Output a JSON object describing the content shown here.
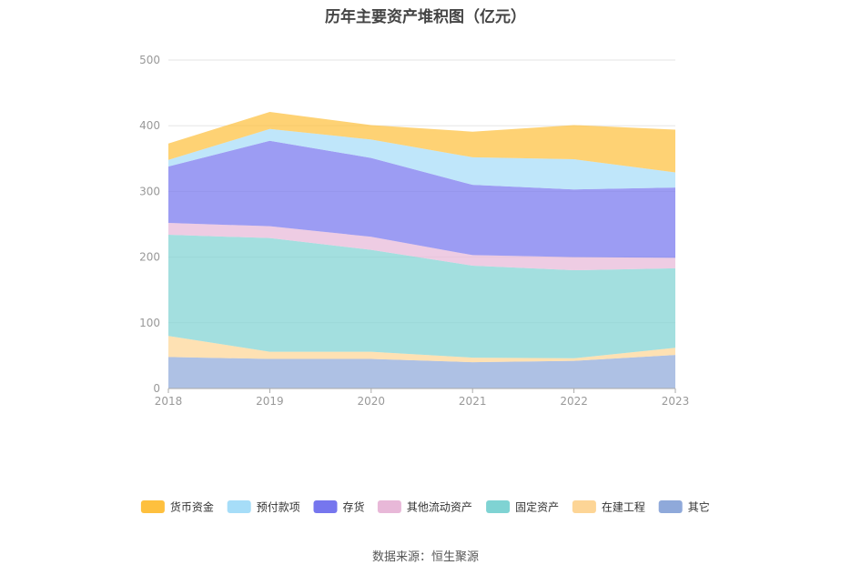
{
  "chart_data": {
    "type": "area",
    "stacked": true,
    "title": "历年主要资产堆积图（亿元）",
    "x": [
      "2018",
      "2019",
      "2020",
      "2021",
      "2022",
      "2023"
    ],
    "ylim": [
      0,
      500
    ],
    "yticks": [
      "0",
      "100",
      "200",
      "300",
      "400",
      "500"
    ],
    "grid": true,
    "legend_position": "bottom",
    "series": [
      {
        "name": "其它",
        "color": "#8fa9da",
        "values": [
          48,
          45,
          45,
          40,
          42,
          51
        ]
      },
      {
        "name": "在建工程",
        "color": "#fdd596",
        "values": [
          32,
          11,
          11,
          7,
          4,
          11
        ]
      },
      {
        "name": "固定资产",
        "color": "#7fd3d3",
        "values": [
          154,
          173,
          155,
          140,
          134,
          121
        ]
      },
      {
        "name": "其他流动资产",
        "color": "#e8b8d8",
        "values": [
          18,
          18,
          20,
          16,
          20,
          16
        ]
      },
      {
        "name": "存货",
        "color": "#7676ee",
        "values": [
          86,
          130,
          120,
          107,
          103,
          107
        ]
      },
      {
        "name": "预付款项",
        "color": "#a6ddf8",
        "values": [
          10,
          18,
          28,
          42,
          46,
          23
        ]
      },
      {
        "name": "货币资金",
        "color": "#fec03e",
        "values": [
          25,
          26,
          22,
          39,
          52,
          65
        ]
      }
    ],
    "legend_order": [
      "货币资金",
      "预付款项",
      "存货",
      "其他流动资产",
      "固定资产",
      "在建工程",
      "其它"
    ]
  },
  "footer": {
    "source": "数据来源：恒生聚源"
  }
}
